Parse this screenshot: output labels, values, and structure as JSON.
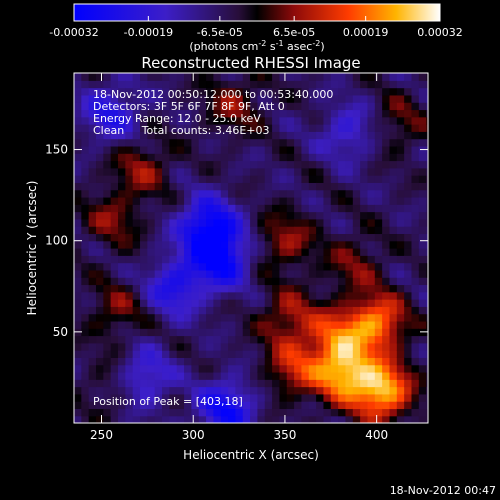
{
  "chart_data": {
    "type": "heatmap",
    "title": "Reconstructed RHESSI Image",
    "xlabel": "Heliocentric X (arcsec)",
    "ylabel": "Heliocentric Y (arcsec)",
    "xlim": [
      235,
      428
    ],
    "ylim": [
      0,
      192
    ],
    "x_ticks": [
      250,
      300,
      350,
      400
    ],
    "y_ticks": [
      50,
      100,
      150
    ],
    "annotations": [
      "18-Nov-2012 00:50:12.000 to 00:53:40.000",
      "Detectors: 3F 5F 6F 7F 8F 9F, Att 0",
      "Energy Range: 12.0 - 25.0 keV",
      "Clean     Total counts: 3.46E+03"
    ],
    "peak_label": "Position of Peak = [403,18]",
    "colorbar": {
      "min": -0.00032,
      "max": 0.00032,
      "tick_labels": [
        "-0.00032",
        "-0.00019",
        "-6.5e-05",
        "6.5e-05",
        "0.00019",
        "0.00032"
      ],
      "units_prefix": "(photons cm",
      "units_exp1": "-2",
      "units_mid1": " s",
      "units_exp2": "-1",
      "units_mid2": " asec",
      "units_exp3": "-2",
      "units_suffix": ")"
    },
    "hotspots": [
      {
        "x": 403,
        "y": 18,
        "value": 0.00032
      },
      {
        "x": 382,
        "y": 28,
        "value": 0.00029
      },
      {
        "x": 400,
        "y": 55,
        "value": 0.00026
      },
      {
        "x": 378,
        "y": 48,
        "value": 0.00018
      },
      {
        "x": 355,
        "y": 30,
        "value": 0.00016
      },
      {
        "x": 352,
        "y": 58,
        "value": 0.00014
      },
      {
        "x": 350,
        "y": 100,
        "value": 0.00013
      },
      {
        "x": 388,
        "y": 88,
        "value": 0.0001
      },
      {
        "x": 272,
        "y": 140,
        "value": 0.00012
      },
      {
        "x": 256,
        "y": 112,
        "value": 0.00011
      },
      {
        "x": 258,
        "y": 62,
        "value": 0.0001
      },
      {
        "x": 322,
        "y": 175,
        "value": 0.00011
      },
      {
        "x": 412,
        "y": 165,
        "value": 9e-05
      },
      {
        "x": 258,
        "y": 22,
        "value": 8e-05
      },
      {
        "x": 318,
        "y": 8,
        "value": -0.00022
      },
      {
        "x": 308,
        "y": 108,
        "value": -0.00026
      },
      {
        "x": 315,
        "y": 90,
        "value": -0.00024
      },
      {
        "x": 290,
        "y": 75,
        "value": -0.00018
      },
      {
        "x": 255,
        "y": 170,
        "value": -0.00016
      },
      {
        "x": 272,
        "y": 25,
        "value": -0.00017
      },
      {
        "x": 385,
        "y": 160,
        "value": -0.00013
      }
    ]
  },
  "footer_timestamp": "18-Nov-2012 00:47"
}
